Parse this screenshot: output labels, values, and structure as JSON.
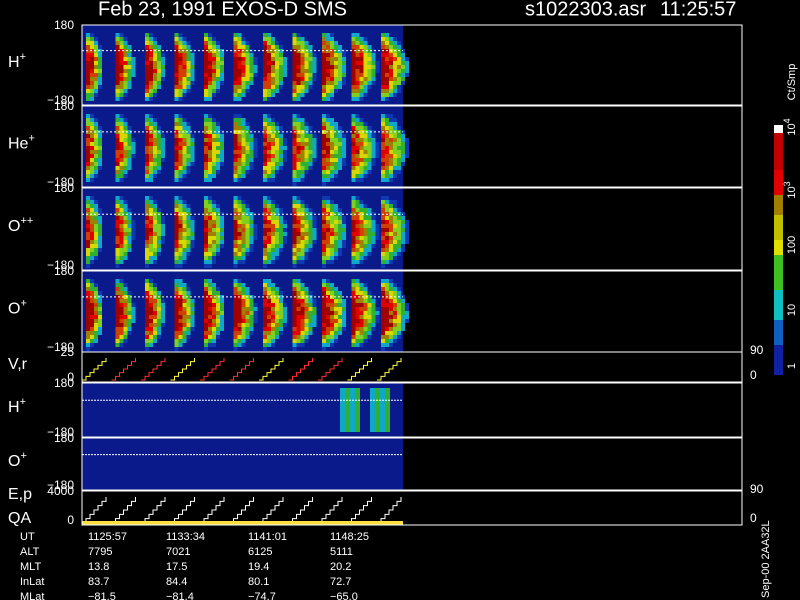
{
  "header": {
    "title": "Feb 23, 1991   EXOS-D SMS",
    "file": "s1022303.asr",
    "time": "11:25:57"
  },
  "panels": [
    {
      "label": "H",
      "sup": "+",
      "top": "180",
      "bottom": "−180"
    },
    {
      "label": "He",
      "sup": "+",
      "top": "180",
      "bottom": "−180"
    },
    {
      "label": "O",
      "sup": "++",
      "top": "180",
      "bottom": "−180"
    },
    {
      "label": "O",
      "sup": "+",
      "top": "180",
      "bottom": "−180"
    },
    {
      "label": "V,r",
      "top": "25",
      "bottom": "0",
      "right_top": "90",
      "right_bottom": "0"
    },
    {
      "label": "H",
      "sup": "+",
      "top": "180",
      "bottom": "−180"
    },
    {
      "label": "O",
      "sup": "+",
      "top": "180",
      "bottom": "−180"
    },
    {
      "label": "E,p",
      "label2": "QA",
      "top": "4000",
      "bottom": "0",
      "right_top": "90",
      "right_bottom": "0"
    }
  ],
  "colorbar": {
    "unit": "Ct/Smp",
    "labels": [
      {
        "base": "10",
        "exp": "4"
      },
      {
        "base": "10",
        "exp": "3"
      },
      {
        "base": "100"
      },
      {
        "base": "10"
      },
      {
        "base": "1"
      }
    ]
  },
  "footer": {
    "rows": [
      [
        "UT",
        "1125:57",
        "1133:34",
        "1141:01",
        "1148:25"
      ],
      [
        "ALT",
        "7795",
        "7021",
        "6125",
        "5111"
      ],
      [
        "MLT",
        "13.8",
        "17.5",
        "19.4",
        "20.2"
      ],
      [
        "InLat",
        "83.7",
        "84.4",
        "80.1",
        "72.7"
      ],
      [
        "MLat",
        "−81.5",
        "−81.4",
        "−74.7",
        "−65.0"
      ]
    ]
  },
  "side_note": "Sep-00  2AA32L"
}
